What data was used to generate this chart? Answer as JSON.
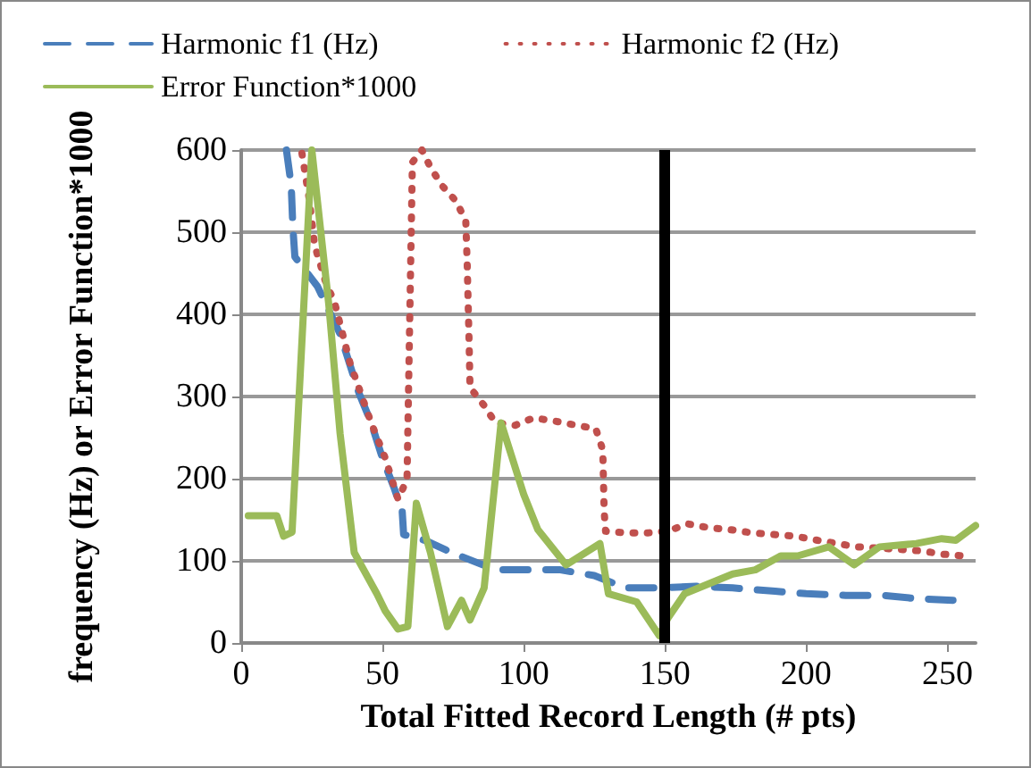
{
  "chart_data": {
    "type": "line",
    "xlabel": "Total Fitted Record Length (# pts)",
    "ylabel": "frequency (Hz) or Error Function*1000",
    "xlim": [
      0,
      260
    ],
    "xticks": [
      0,
      50,
      100,
      150,
      200,
      250
    ],
    "ylim": [
      0,
      600
    ],
    "yticks": [
      0,
      100,
      200,
      300,
      400,
      500,
      600
    ],
    "grid": "y",
    "legend": "top",
    "marker": "none",
    "series": [
      {
        "name": "Harmonic f1 (Hz)",
        "color": "#4a7ebb",
        "line_style": "dashed",
        "x": [
          16,
          17.7,
          18.3,
          19,
          27,
          35,
          41.6,
          46,
          50,
          54,
          57,
          57.5,
          65,
          74.5,
          90,
          98,
          113,
          125,
          136,
          147,
          161,
          174,
          189,
          200,
          214,
          227,
          239,
          252
        ],
        "values": [
          600,
          557,
          505,
          470,
          434,
          376,
          305,
          268,
          225,
          190,
          160,
          132,
          125,
          110,
          89,
          89,
          89,
          82,
          67,
          67,
          69,
          67,
          63,
          60,
          58,
          58,
          54,
          52
        ]
      },
      {
        "name": "Harmonic f2 (Hz)",
        "color": "#c0504d",
        "line_style": "dotted",
        "x": [
          21.5,
          24,
          26,
          30,
          33,
          38.5,
          41.6,
          46,
          51,
          55.5,
          58.7,
          60.6,
          64,
          67,
          71,
          76,
          79.5,
          80,
          80.7,
          81,
          86,
          90,
          97,
          103.5,
          111,
          118.6,
          125.5,
          128,
          128.5,
          129,
          136,
          144,
          151,
          158,
          166,
          173,
          181,
          188.6,
          196,
          204,
          211,
          218,
          233,
          241,
          248.6,
          255.6
        ],
        "values": [
          596,
          542,
          484,
          438,
          415,
          341,
          311,
          268,
          225,
          175,
          199,
          585,
          600,
          579,
          557,
          538,
          514,
          462,
          363,
          311,
          289,
          268,
          265,
          274,
          270,
          265,
          261,
          235,
          160,
          136,
          134,
          134,
          136,
          145,
          140,
          138,
          134,
          132,
          130,
          125,
          121,
          117,
          114,
          112,
          108,
          106
        ]
      },
      {
        "name": "Error Function*1000",
        "color": "#9bbb59",
        "line_style": "solid",
        "x": [
          2.5,
          12.6,
          15,
          18,
          25,
          31,
          35,
          40,
          48,
          51,
          55.5,
          59,
          62,
          67,
          73,
          78,
          81,
          86,
          92,
          100,
          105,
          115,
          127,
          130,
          140,
          148,
          151,
          157,
          174,
          182,
          191,
          197,
          208,
          217,
          226,
          239,
          248,
          253,
          260
        ],
        "values": [
          155,
          155,
          130,
          135,
          600,
          412,
          255,
          110,
          60,
          39,
          17,
          20,
          170,
          110,
          20,
          52,
          28,
          67,
          268,
          181,
          138,
          95,
          121,
          60,
          50,
          9,
          30,
          60,
          84,
          89,
          106,
          106,
          117,
          95,
          117,
          121,
          127,
          125,
          143
        ]
      }
    ],
    "ref_lines": [
      {
        "axis": "x",
        "value": 150,
        "color": "#000000",
        "line_style": "solid"
      }
    ]
  }
}
